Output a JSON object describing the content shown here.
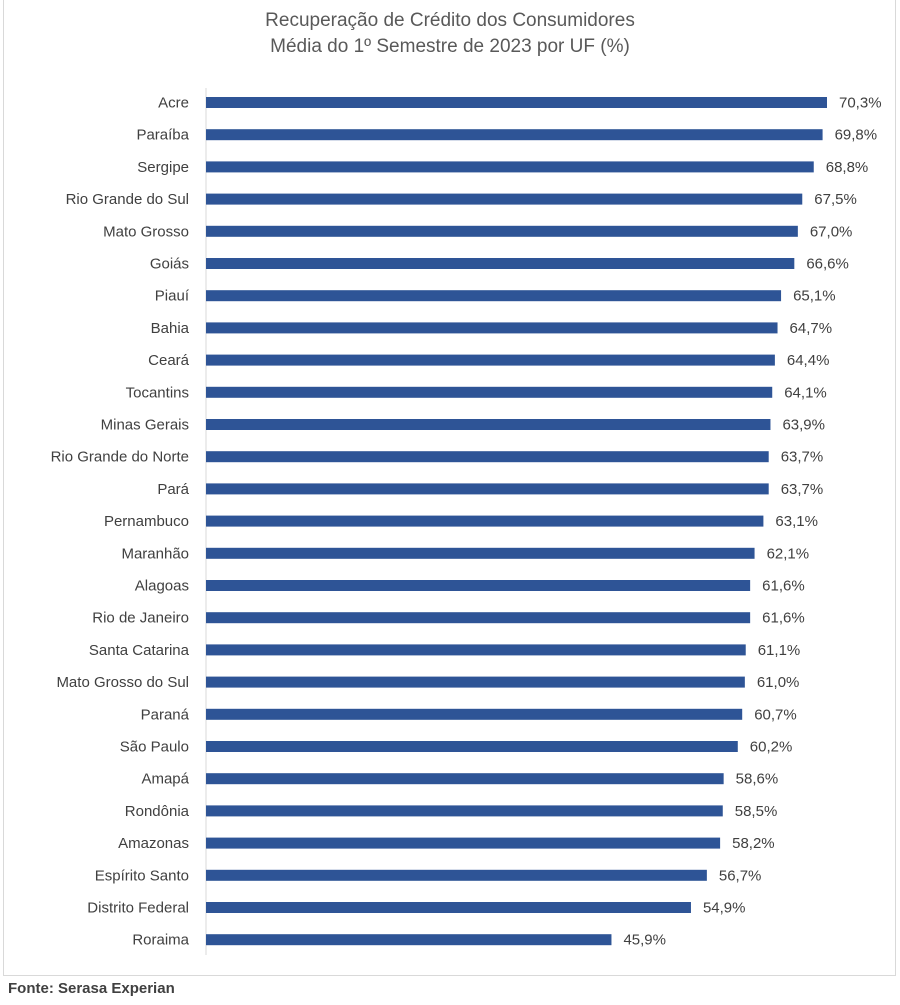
{
  "title_line1": "Recuperação de Crédito dos Consumidores",
  "title_line2": "Média do 1º Semestre de 2023 por UF (%)",
  "source": "Fonte: Serasa Experian",
  "colors": {
    "bar": "#2E5496",
    "text": "#404040",
    "axis": "#d9d9d9"
  },
  "chart_data": {
    "type": "bar",
    "orientation": "horizontal",
    "title": "Recuperação de Crédito dos Consumidores / Média do 1º Semestre de 2023 por UF (%)",
    "xlabel": "",
    "ylabel": "",
    "xlim": [
      0,
      70.3
    ],
    "grid": false,
    "legend": "none",
    "categories": [
      "Acre",
      "Paraíba",
      "Sergipe",
      "Rio Grande do Sul",
      "Mato Grosso",
      "Goiás",
      "Piauí",
      "Bahia",
      "Ceará",
      "Tocantins",
      "Minas Gerais",
      "Rio Grande do Norte",
      "Pará",
      "Pernambuco",
      "Maranhão",
      "Alagoas",
      "Rio de Janeiro",
      "Santa Catarina",
      "Mato Grosso do Sul",
      "Paraná",
      "São Paulo",
      "Amapá",
      "Rondônia",
      "Amazonas",
      "Espírito Santo",
      "Distrito Federal",
      "Roraima"
    ],
    "values": [
      70.3,
      69.8,
      68.8,
      67.5,
      67.0,
      66.6,
      65.1,
      64.7,
      64.4,
      64.1,
      63.9,
      63.7,
      63.7,
      63.1,
      62.1,
      61.6,
      61.6,
      61.1,
      61.0,
      60.7,
      60.2,
      58.6,
      58.5,
      58.2,
      56.7,
      54.9,
      45.9
    ],
    "value_labels": [
      "70,3%",
      "69,8%",
      "68,8%",
      "67,5%",
      "67,0%",
      "66,6%",
      "65,1%",
      "64,7%",
      "64,4%",
      "64,1%",
      "63,9%",
      "63,7%",
      "63,7%",
      "63,1%",
      "62,1%",
      "61,6%",
      "61,6%",
      "61,1%",
      "61,0%",
      "60,7%",
      "60,2%",
      "58,6%",
      "58,5%",
      "58,2%",
      "56,7%",
      "54,9%",
      "45,9%"
    ]
  }
}
